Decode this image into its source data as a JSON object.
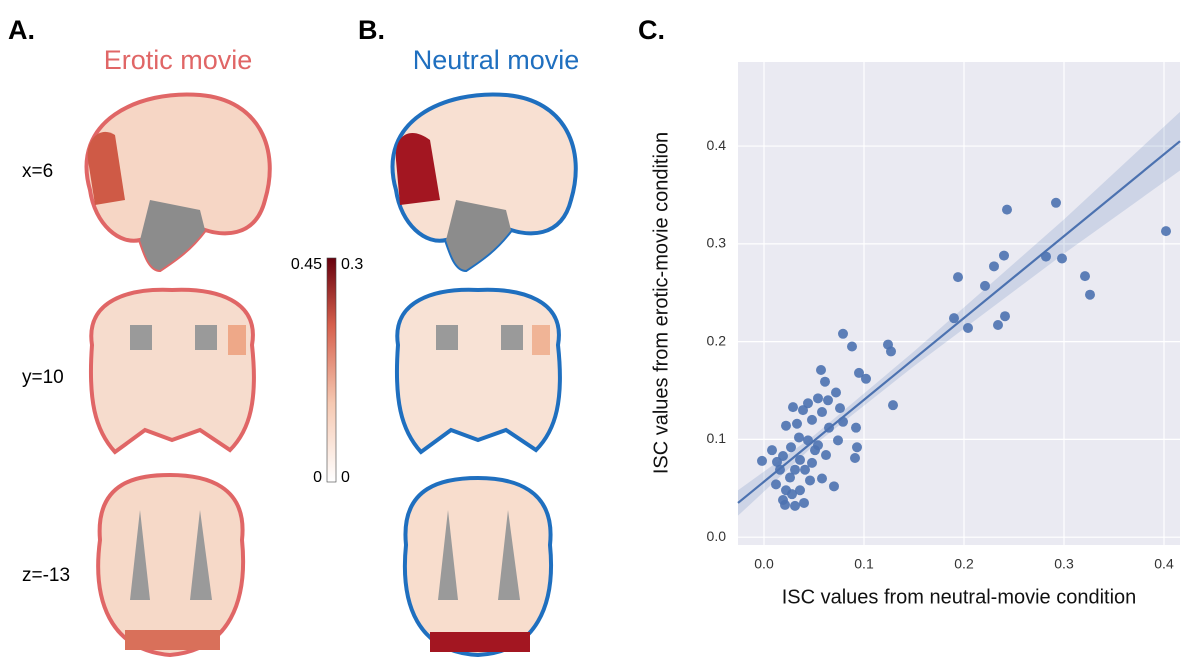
{
  "panels": [
    {
      "letter": "A.",
      "title": "Erotic movie"
    },
    {
      "letter": "B.",
      "title": "Neutral movie"
    }
  ],
  "slice_labels": [
    "x=6",
    "y=10",
    "z=-13"
  ],
  "colorbar": {
    "left_lim": [
      0,
      0.45
    ],
    "right_lim": [
      0,
      0.3
    ]
  },
  "chart_data": {
    "type": "scatter",
    "title": "C.",
    "xlabel": "ISC values from neutral-movie condition",
    "ylabel": "ISC values from erotic-movie condition",
    "color": "#4c72b0",
    "grid": true,
    "xlim": [
      -0.026,
      0.416
    ],
    "ylim": [
      -0.008,
      0.486
    ],
    "xticks": [
      {
        "value": 0,
        "label": "0.0"
      },
      0.1,
      0.2,
      0.3,
      0.4
    ],
    "yticks": [
      {
        "value": 0,
        "label": "0.0"
      },
      0.1,
      0.2,
      0.3,
      0.4
    ],
    "x": [
      0.402,
      0.292,
      0.243,
      0.298,
      0.282,
      0.321,
      0.326,
      0.24,
      0.23,
      0.221,
      0.194,
      0.19,
      0.204,
      0.241,
      0.234,
      0.124,
      0.127,
      0.088,
      0.079,
      0.095,
      0.102,
      0.129,
      0.057,
      0.092,
      0.091,
      0.093,
      0.072,
      0.064,
      0.054,
      0.044,
      0.039,
      0.048,
      0.058,
      0.065,
      0.029,
      0.022,
      0.035,
      0.044,
      0.051,
      0.027,
      0.008,
      -0.002,
      0.019,
      0.013,
      0.031,
      0.041,
      0.036,
      0.048,
      0.058,
      0.07,
      0.012,
      0.022,
      0.028,
      0.019,
      0.021,
      0.031,
      0.04,
      0.036,
      0.046,
      0.054,
      0.062,
      0.074,
      0.079,
      0.061,
      0.076,
      0.033,
      0.026,
      0.016
    ],
    "y": [
      0.313,
      0.342,
      0.335,
      0.285,
      0.287,
      0.267,
      0.248,
      0.288,
      0.277,
      0.257,
      0.266,
      0.224,
      0.214,
      0.226,
      0.217,
      0.197,
      0.19,
      0.195,
      0.208,
      0.168,
      0.162,
      0.135,
      0.171,
      0.112,
      0.081,
      0.092,
      0.148,
      0.14,
      0.142,
      0.137,
      0.13,
      0.12,
      0.128,
      0.112,
      0.133,
      0.114,
      0.102,
      0.099,
      0.089,
      0.092,
      0.089,
      0.078,
      0.083,
      0.077,
      0.069,
      0.069,
      0.079,
      0.076,
      0.06,
      0.052,
      0.054,
      0.048,
      0.044,
      0.038,
      0.033,
      0.032,
      0.035,
      0.048,
      0.058,
      0.094,
      0.084,
      0.099,
      0.118,
      0.159,
      0.132,
      0.116,
      0.061,
      0.069
    ],
    "fit": {
      "x": [
        -0.026,
        0.416
      ],
      "y": [
        0.035,
        0.405
      ]
    },
    "band": {
      "x": [
        -0.026,
        0.05,
        0.15,
        0.3,
        0.416
      ],
      "lower": [
        0.022,
        0.094,
        0.175,
        0.29,
        0.375
      ],
      "upper": [
        0.048,
        0.104,
        0.19,
        0.325,
        0.435
      ]
    }
  }
}
